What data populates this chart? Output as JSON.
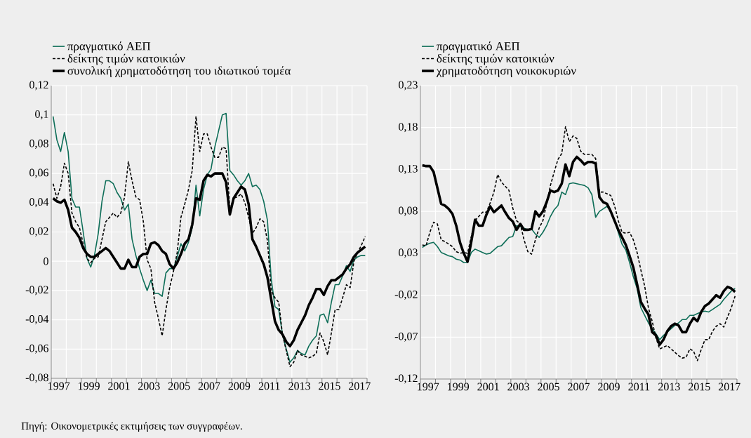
{
  "chart_data": [
    {
      "type": "line",
      "legend": "top",
      "grid": true,
      "annotations": [
        "Πηγή: Οικονομετρικές εκτιμήσεις των συγγραφέων."
      ],
      "x": [
        1997.125,
        1997.375,
        1997.625,
        1997.875,
        1998.125,
        1998.375,
        1998.625,
        1998.875,
        1999.125,
        1999.375,
        1999.625,
        1999.875,
        2000.125,
        2000.375,
        2000.625,
        2000.875,
        2001.125,
        2001.375,
        2001.625,
        2001.875,
        2002.125,
        2002.375,
        2002.625,
        2002.875,
        2003.125,
        2003.375,
        2003.625,
        2003.875,
        2004.125,
        2004.375,
        2004.625,
        2004.875,
        2005.125,
        2005.375,
        2005.625,
        2005.875,
        2006.125,
        2006.375,
        2006.625,
        2006.875,
        2007.125,
        2007.375,
        2007.625,
        2007.875,
        2008.125,
        2008.375,
        2008.625,
        2008.875,
        2009.125,
        2009.375,
        2009.625,
        2009.875,
        2010.125,
        2010.375,
        2010.625,
        2010.875,
        2011.125,
        2011.375,
        2011.625,
        2011.875,
        2012.125,
        2012.375,
        2012.625,
        2012.875,
        2013.125,
        2013.375,
        2013.625,
        2013.875,
        2014.125,
        2014.375,
        2014.625,
        2014.875,
        2015.125,
        2015.375,
        2015.625,
        2015.875,
        2016.125,
        2016.375,
        2016.625,
        2016.875,
        2017.125,
        2017.375,
        2017.625,
        2017.875
      ],
      "xlim": [
        1997,
        2018
      ],
      "xticks": [
        {
          "value": 1997,
          "label": null
        },
        {
          "value": 1998,
          "label": null
        },
        {
          "value": 1999,
          "label": null
        },
        {
          "value": 2000,
          "label": null
        },
        {
          "value": 2001,
          "label": null
        },
        {
          "value": 2002,
          "label": null
        },
        {
          "value": 2003,
          "label": null
        },
        {
          "value": 2004,
          "label": null
        },
        {
          "value": 2005,
          "label": null
        },
        {
          "value": 2006,
          "label": null
        },
        {
          "value": 2007,
          "label": null
        },
        {
          "value": 2008,
          "label": null
        },
        {
          "value": 2009,
          "label": null
        },
        {
          "value": 2010,
          "label": null
        },
        {
          "value": 2011,
          "label": null
        },
        {
          "value": 2012,
          "label": null
        },
        {
          "value": 2013,
          "label": null
        },
        {
          "value": 2014,
          "label": null
        },
        {
          "value": 2015,
          "label": null
        },
        {
          "value": 2016,
          "label": null
        },
        {
          "value": 2017,
          "label": null
        },
        {
          "value": 2018,
          "label": null
        },
        {
          "value": 1997.5,
          "label": "1997"
        },
        {
          "value": 1999.5,
          "label": "1999"
        },
        {
          "value": 2001.5,
          "label": "2001"
        },
        {
          "value": 2003.5,
          "label": "2003"
        },
        {
          "value": 2005.5,
          "label": "2005"
        },
        {
          "value": 2007.5,
          "label": "2007"
        },
        {
          "value": 2009.5,
          "label": "2009"
        },
        {
          "value": 2011.5,
          "label": "2011"
        },
        {
          "value": 2013.5,
          "label": "2013"
        },
        {
          "value": 2015.5,
          "label": "2015"
        },
        {
          "value": 2017.5,
          "label": "2017"
        }
      ],
      "ylim": [
        -0.08,
        0.12
      ],
      "yticks": [
        {
          "value": -0.08,
          "label": "-0,08"
        },
        {
          "value": -0.06,
          "label": "-0,06"
        },
        {
          "value": -0.04,
          "label": "-0,04"
        },
        {
          "value": -0.02,
          "label": "-0,02"
        },
        0,
        {
          "value": 0.02,
          "label": "0,02"
        },
        {
          "value": 0.04,
          "label": "0,04"
        },
        {
          "value": 0.06,
          "label": "0,06"
        },
        {
          "value": 0.08,
          "label": "0,08"
        },
        {
          "value": 0.1,
          "label": "0,1"
        },
        {
          "value": 0.12,
          "label": "0,12"
        }
      ],
      "series": [
        {
          "name": "πραγματικό ΑΕΠ",
          "color": "#0e6e58",
          "line_style": "solid",
          "values": [
            0.099,
            0.083,
            0.075,
            0.088,
            0.075,
            0.043,
            0.037,
            0.037,
            0.02,
            0.002,
            -0.004,
            0.004,
            0.019,
            0.041,
            0.055,
            0.055,
            0.053,
            0.047,
            0.043,
            0.035,
            0.039,
            0.015,
            0.004,
            -0.005,
            -0.013,
            -0.02,
            -0.013,
            -0.022,
            -0.022,
            -0.024,
            -0.008,
            -0.005,
            -0.005,
            0.003,
            0.012,
            0.007,
            0.013,
            0.023,
            0.052,
            0.031,
            0.049,
            0.059,
            0.063,
            0.078,
            0.089,
            0.1,
            0.101,
            0.062,
            0.059,
            0.055,
            0.052,
            0.055,
            0.06,
            0.051,
            0.052,
            0.049,
            0.041,
            0.028,
            -0.012,
            -0.031,
            -0.033,
            -0.05,
            -0.06,
            -0.069,
            -0.066,
            -0.061,
            -0.063,
            -0.064,
            -0.058,
            -0.054,
            -0.051,
            -0.037,
            -0.036,
            -0.042,
            -0.028,
            -0.016,
            -0.016,
            -0.01,
            -0.003,
            -0.007,
            0.001,
            0.003,
            0.004,
            0.004
          ]
        },
        {
          "name": "δείκτης τιμών κατοικιών",
          "color": "#000000",
          "line_style": "dashed",
          "values": [
            0.053,
            0.043,
            0.051,
            0.067,
            0.06,
            0.033,
            0.027,
            0.023,
            0.012,
            0.002,
            -0.001,
            0.002,
            0.003,
            0.015,
            0.027,
            0.03,
            0.033,
            0.03,
            0.033,
            0.044,
            0.068,
            0.055,
            0.044,
            0.042,
            0.027,
            0.001,
            -0.005,
            -0.028,
            -0.039,
            -0.051,
            -0.033,
            -0.018,
            -0.007,
            0.006,
            0.03,
            0.039,
            0.049,
            0.062,
            0.099,
            0.075,
            0.087,
            0.087,
            0.078,
            0.071,
            0.071,
            0.078,
            0.077,
            0.035,
            0.043,
            0.044,
            0.046,
            0.04,
            0.03,
            0.019,
            0.023,
            0.029,
            0.027,
            0.014,
            -0.02,
            -0.025,
            -0.028,
            -0.05,
            -0.061,
            -0.072,
            -0.069,
            -0.061,
            -0.064,
            -0.065,
            -0.066,
            -0.065,
            -0.063,
            -0.049,
            -0.055,
            -0.064,
            -0.049,
            -0.033,
            -0.033,
            -0.025,
            -0.016,
            -0.018,
            0,
            0.006,
            0.011,
            0.017
          ]
        },
        {
          "name": "συνολική χρηματοδότηση του ιδιωτικού τομέα",
          "color": "#000000",
          "line_style": "solid",
          "values": [
            0.043,
            0.041,
            0.04,
            0.042,
            0.035,
            0.023,
            0.02,
            0.016,
            0.009,
            0.005,
            0.003,
            0.003,
            0.005,
            0.007,
            0.009,
            0.007,
            0.003,
            -0.001,
            -0.005,
            -0.005,
            0.001,
            -0.004,
            -0.004,
            0.003,
            0.005,
            0.005,
            0.012,
            0.013,
            0.011,
            0.007,
            0.005,
            -0.002,
            -0.005,
            -0.001,
            0.005,
            0.012,
            0.015,
            0.025,
            0.043,
            0.042,
            0.055,
            0.059,
            0.058,
            0.06,
            0.06,
            0.06,
            0.054,
            0.032,
            0.043,
            0.047,
            0.051,
            0.049,
            0.039,
            0.015,
            0.01,
            0.004,
            -0.002,
            -0.011,
            -0.026,
            -0.041,
            -0.047,
            -0.05,
            -0.055,
            -0.058,
            -0.054,
            -0.047,
            -0.042,
            -0.037,
            -0.03,
            -0.025,
            -0.019,
            -0.019,
            -0.023,
            -0.017,
            -0.013,
            -0.013,
            -0.011,
            -0.009,
            -0.005,
            -0.002,
            0.003,
            0.006,
            0.008,
            0.01
          ]
        }
      ]
    },
    {
      "type": "line",
      "legend": "top",
      "grid": true,
      "x": [
        1997.125,
        1997.375,
        1997.625,
        1997.875,
        1998.125,
        1998.375,
        1998.625,
        1998.875,
        1999.125,
        1999.375,
        1999.625,
        1999.875,
        2000.125,
        2000.375,
        2000.625,
        2000.875,
        2001.125,
        2001.375,
        2001.625,
        2001.875,
        2002.125,
        2002.375,
        2002.625,
        2002.875,
        2003.125,
        2003.375,
        2003.625,
        2003.875,
        2004.125,
        2004.375,
        2004.625,
        2004.875,
        2005.125,
        2005.375,
        2005.625,
        2005.875,
        2006.125,
        2006.375,
        2006.625,
        2006.875,
        2007.125,
        2007.375,
        2007.625,
        2007.875,
        2008.125,
        2008.375,
        2008.625,
        2008.875,
        2009.125,
        2009.375,
        2009.625,
        2009.875,
        2010.125,
        2010.375,
        2010.625,
        2010.875,
        2011.125,
        2011.375,
        2011.625,
        2011.875,
        2012.125,
        2012.375,
        2012.625,
        2012.875,
        2013.125,
        2013.375,
        2013.625,
        2013.875,
        2014.125,
        2014.375,
        2014.625,
        2014.875,
        2015.125,
        2015.375,
        2015.625,
        2015.875,
        2016.125,
        2016.375,
        2016.625,
        2016.875,
        2017.125,
        2017.375,
        2017.625,
        2017.875
      ],
      "xlim": [
        1997,
        2018
      ],
      "xticks": [
        {
          "value": 1997,
          "label": null
        },
        {
          "value": 1998,
          "label": null
        },
        {
          "value": 1999,
          "label": null
        },
        {
          "value": 2000,
          "label": null
        },
        {
          "value": 2001,
          "label": null
        },
        {
          "value": 2002,
          "label": null
        },
        {
          "value": 2003,
          "label": null
        },
        {
          "value": 2004,
          "label": null
        },
        {
          "value": 2005,
          "label": null
        },
        {
          "value": 2006,
          "label": null
        },
        {
          "value": 2007,
          "label": null
        },
        {
          "value": 2008,
          "label": null
        },
        {
          "value": 2009,
          "label": null
        },
        {
          "value": 2010,
          "label": null
        },
        {
          "value": 2011,
          "label": null
        },
        {
          "value": 2012,
          "label": null
        },
        {
          "value": 2013,
          "label": null
        },
        {
          "value": 2014,
          "label": null
        },
        {
          "value": 2015,
          "label": null
        },
        {
          "value": 2016,
          "label": null
        },
        {
          "value": 2017,
          "label": null
        },
        {
          "value": 2018,
          "label": null
        },
        {
          "value": 1997.5,
          "label": "1997"
        },
        {
          "value": 1999.5,
          "label": "1999"
        },
        {
          "value": 2001.5,
          "label": "2001"
        },
        {
          "value": 2003.5,
          "label": "2003"
        },
        {
          "value": 2005.5,
          "label": "2005"
        },
        {
          "value": 2007.5,
          "label": "2007"
        },
        {
          "value": 2009.5,
          "label": "2009"
        },
        {
          "value": 2011.5,
          "label": "2011"
        },
        {
          "value": 2013.5,
          "label": "2013"
        },
        {
          "value": 2015.5,
          "label": "2015"
        },
        {
          "value": 2017.5,
          "label": "2017"
        }
      ],
      "ylim": [
        -0.12,
        0.23
      ],
      "yticks": [
        {
          "value": -0.12,
          "label": "-0,12"
        },
        {
          "value": -0.07,
          "label": "-0,07"
        },
        {
          "value": -0.02,
          "label": "-0,02"
        },
        {
          "value": 0.03,
          "label": "0,03"
        },
        {
          "value": 0.08,
          "label": "0,08"
        },
        {
          "value": 0.13,
          "label": "0,13"
        },
        {
          "value": 0.18,
          "label": "0,18"
        },
        {
          "value": 0.23,
          "label": "0,23"
        }
      ],
      "series": [
        {
          "name": "πραγματικό ΑΕΠ",
          "color": "#0e6e58",
          "line_style": "solid",
          "values": [
            0.037,
            0.04,
            0.042,
            0.043,
            0.038,
            0.031,
            0.029,
            0.027,
            0.026,
            0.023,
            0.022,
            0.019,
            0.019,
            0.031,
            0.035,
            0.033,
            0.031,
            0.029,
            0.03,
            0.034,
            0.038,
            0.039,
            0.044,
            0.049,
            0.05,
            0.063,
            0.062,
            0.06,
            0.058,
            0.059,
            0.053,
            0.049,
            0.055,
            0.063,
            0.074,
            0.082,
            0.087,
            0.103,
            0.1,
            0.113,
            0.114,
            0.113,
            0.112,
            0.111,
            0.108,
            0.1,
            0.073,
            0.08,
            0.083,
            0.086,
            0.08,
            0.069,
            0.055,
            0.041,
            0.034,
            0.019,
            0.002,
            -0.012,
            -0.035,
            -0.044,
            -0.053,
            -0.06,
            -0.066,
            -0.073,
            -0.068,
            -0.064,
            -0.06,
            -0.056,
            -0.053,
            -0.049,
            -0.049,
            -0.044,
            -0.044,
            -0.042,
            -0.04,
            -0.039,
            -0.04,
            -0.037,
            -0.034,
            -0.031,
            -0.025,
            -0.02,
            -0.015,
            -0.012
          ]
        },
        {
          "name": "δείκτης τιμών κατοικιών",
          "color": "#000000",
          "line_style": "dashed",
          "values": [
            0.04,
            0.039,
            0.055,
            0.067,
            0.065,
            0.046,
            0.044,
            0.041,
            0.038,
            0.032,
            0.03,
            0.031,
            0.03,
            0.05,
            0.069,
            0.074,
            0.079,
            0.079,
            0.09,
            0.103,
            0.124,
            0.115,
            0.11,
            0.105,
            0.084,
            0.069,
            0.065,
            0.046,
            0.032,
            0.029,
            0.046,
            0.06,
            0.069,
            0.089,
            0.111,
            0.127,
            0.142,
            0.149,
            0.181,
            0.163,
            0.17,
            0.167,
            0.152,
            0.148,
            0.148,
            0.148,
            0.143,
            0.103,
            0.103,
            0.101,
            0.099,
            0.087,
            0.069,
            0.055,
            0.054,
            0.055,
            0.046,
            0.031,
            0.01,
            -0.009,
            -0.035,
            -0.051,
            -0.071,
            -0.084,
            -0.082,
            -0.08,
            -0.084,
            -0.088,
            -0.092,
            -0.095,
            -0.094,
            -0.084,
            -0.087,
            -0.098,
            -0.085,
            -0.073,
            -0.073,
            -0.063,
            -0.057,
            -0.054,
            -0.058,
            -0.046,
            -0.035,
            -0.021
          ]
        },
        {
          "name": "χρηματοδότηση νοικοκυριών",
          "color": "#000000",
          "line_style": "solid",
          "values": [
            0.135,
            0.134,
            0.134,
            0.127,
            0.108,
            0.089,
            0.087,
            0.083,
            0.077,
            0.063,
            0.043,
            0.03,
            0.02,
            0.044,
            0.07,
            0.063,
            0.063,
            0.076,
            0.086,
            0.079,
            0.083,
            0.087,
            0.079,
            0.072,
            0.068,
            0.058,
            0.065,
            0.058,
            0.058,
            0.059,
            0.08,
            0.074,
            0.08,
            0.091,
            0.105,
            0.103,
            0.105,
            0.113,
            0.136,
            0.122,
            0.139,
            0.145,
            0.141,
            0.136,
            0.139,
            0.139,
            0.137,
            0.097,
            0.091,
            0.089,
            0.08,
            0.069,
            0.058,
            0.049,
            0.04,
            0.027,
            0.013,
            -0.007,
            -0.028,
            -0.036,
            -0.043,
            -0.064,
            -0.068,
            -0.079,
            -0.073,
            -0.063,
            -0.057,
            -0.054,
            -0.056,
            -0.064,
            -0.064,
            -0.054,
            -0.047,
            -0.051,
            -0.04,
            -0.033,
            -0.03,
            -0.025,
            -0.02,
            -0.023,
            -0.015,
            -0.01,
            -0.012,
            -0.016
          ]
        }
      ]
    }
  ]
}
